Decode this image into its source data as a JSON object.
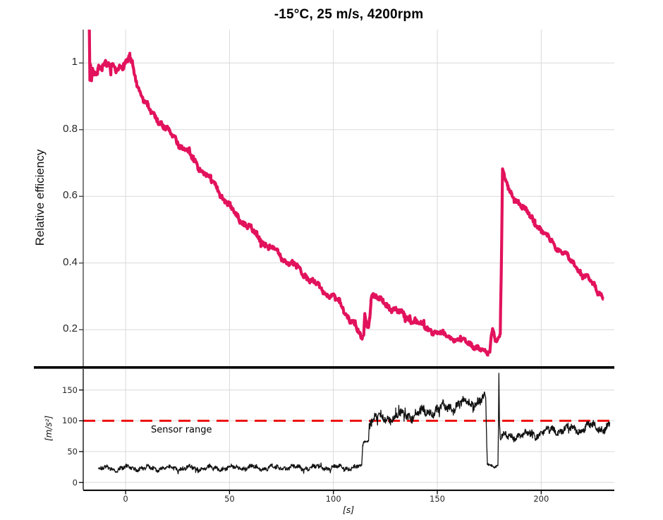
{
  "chart_data": {
    "type": "line",
    "title": "-15°C, 25 m/s, 4200rpm",
    "legend": "none",
    "grid": "on",
    "panels": [
      {
        "name": "relative-efficiency-panel",
        "ylabel": "Relative efficiency",
        "xlim": [
          -20.4,
          235.2
        ],
        "ylim": [
          0.0885,
          1.1
        ],
        "xgrid": [
          0,
          50,
          100,
          150,
          200
        ],
        "yticks": [
          {
            "value": 0.2,
            "label": "0.2"
          },
          {
            "value": 0.4,
            "label": "0.4"
          },
          {
            "value": 0.6,
            "label": "0.6"
          },
          {
            "value": 0.8,
            "label": "0.8"
          },
          {
            "value": 1,
            "label": "1"
          }
        ],
        "series": {
          "name": "relative-efficiency",
          "color": "#e2125c",
          "width": 4.2,
          "keypoints": [
            [
              -17.5,
              1.13
            ],
            [
              -17.2,
              0.95
            ],
            [
              -16.9,
              1.0
            ],
            [
              -16.4,
              0.952
            ],
            [
              -15.9,
              0.99
            ],
            [
              -15.2,
              0.98
            ],
            [
              -13,
              0.985
            ],
            [
              -10,
              0.985
            ],
            [
              -7,
              0.99
            ],
            [
              -4,
              0.985
            ],
            [
              -1,
              0.99
            ],
            [
              1,
              0.995
            ],
            [
              2,
              1.02
            ],
            [
              2.6,
              1.005
            ],
            [
              3.2,
              1.0
            ],
            [
              4,
              0.975
            ],
            [
              5,
              0.952
            ],
            [
              6,
              0.93
            ],
            [
              7,
              0.912
            ],
            [
              8,
              0.895
            ],
            [
              9,
              0.882
            ],
            [
              10.5,
              0.868
            ],
            [
              12,
              0.855
            ],
            [
              13.5,
              0.847
            ],
            [
              15,
              0.838
            ],
            [
              16.5,
              0.824
            ],
            [
              18,
              0.812
            ],
            [
              19.5,
              0.8
            ],
            [
              21,
              0.792
            ],
            [
              23,
              0.78
            ],
            [
              25,
              0.765
            ],
            [
              27,
              0.75
            ],
            [
              29,
              0.737
            ],
            [
              31,
              0.722
            ],
            [
              33,
              0.708
            ],
            [
              35,
              0.692
            ],
            [
              37,
              0.678
            ],
            [
              39,
              0.662
            ],
            [
              41,
              0.65
            ],
            [
              43,
              0.632
            ],
            [
              45,
              0.615
            ],
            [
              47,
              0.595
            ],
            [
              49,
              0.578
            ],
            [
              51,
              0.56
            ],
            [
              53,
              0.545
            ],
            [
              55,
              0.532
            ],
            [
              57,
              0.52
            ],
            [
              59,
              0.51
            ],
            [
              61,
              0.495
            ],
            [
              63,
              0.483
            ],
            [
              65,
              0.472
            ],
            [
              67,
              0.458
            ],
            [
              69,
              0.448
            ],
            [
              71,
              0.44
            ],
            [
              73,
              0.43
            ],
            [
              75,
              0.42
            ],
            [
              77,
              0.41
            ],
            [
              79,
              0.4
            ],
            [
              81,
              0.392
            ],
            [
              83,
              0.383
            ],
            [
              85,
              0.372
            ],
            [
              87,
              0.36
            ],
            [
              89,
              0.35
            ],
            [
              91,
              0.338
            ],
            [
              93,
              0.328
            ],
            [
              95,
              0.318
            ],
            [
              97,
              0.308
            ],
            [
              99,
              0.3
            ],
            [
              101,
              0.29
            ],
            [
              103,
              0.278
            ],
            [
              105,
              0.262
            ],
            [
              107,
              0.243
            ],
            [
              109,
              0.225
            ],
            [
              110.5,
              0.21
            ],
            [
              112,
              0.19
            ],
            [
              113,
              0.175
            ],
            [
              113.8,
              0.168
            ],
            [
              114.6,
              0.19
            ],
            [
              115.1,
              0.25
            ],
            [
              115.6,
              0.235
            ],
            [
              116.2,
              0.21
            ],
            [
              116.9,
              0.215
            ],
            [
              117.5,
              0.24
            ],
            [
              118.1,
              0.295
            ],
            [
              118.7,
              0.31
            ],
            [
              119.4,
              0.3
            ],
            [
              120.5,
              0.295
            ],
            [
              122,
              0.29
            ],
            [
              124,
              0.283
            ],
            [
              126,
              0.273
            ],
            [
              128,
              0.266
            ],
            [
              130,
              0.258
            ],
            [
              132,
              0.25
            ],
            [
              134,
              0.243
            ],
            [
              136,
              0.235
            ],
            [
              138,
              0.23
            ],
            [
              140,
              0.222
            ],
            [
              142,
              0.216
            ],
            [
              144,
              0.208
            ],
            [
              146,
              0.202
            ],
            [
              148,
              0.197
            ],
            [
              150,
              0.192
            ],
            [
              152,
              0.187
            ],
            [
              154,
              0.182
            ],
            [
              156,
              0.178
            ],
            [
              158,
              0.174
            ],
            [
              160,
              0.171
            ],
            [
              162,
              0.166
            ],
            [
              164,
              0.162
            ],
            [
              166,
              0.157
            ],
            [
              168,
              0.152
            ],
            [
              170,
              0.145
            ],
            [
              171.5,
              0.139
            ],
            [
              173,
              0.132
            ],
            [
              174.3,
              0.127
            ],
            [
              175.3,
              0.133
            ],
            [
              176,
              0.185
            ],
            [
              176.6,
              0.205
            ],
            [
              177.2,
              0.195
            ],
            [
              177.9,
              0.172
            ],
            [
              178.8,
              0.167
            ],
            [
              179.6,
              0.175
            ],
            [
              180.3,
              0.19
            ],
            [
              180.9,
              0.42
            ],
            [
              181.4,
              0.68
            ],
            [
              182,
              0.665
            ],
            [
              182.8,
              0.645
            ],
            [
              184,
              0.625
            ],
            [
              185.5,
              0.608
            ],
            [
              187,
              0.598
            ],
            [
              189,
              0.585
            ],
            [
              191,
              0.568
            ],
            [
              193,
              0.552
            ],
            [
              195,
              0.538
            ],
            [
              197,
              0.522
            ],
            [
              199,
              0.508
            ],
            [
              201,
              0.494
            ],
            [
              203,
              0.478
            ],
            [
              205,
              0.463
            ],
            [
              207,
              0.452
            ],
            [
              209,
              0.44
            ],
            [
              211,
              0.428
            ],
            [
              213,
              0.415
            ],
            [
              215,
              0.4
            ],
            [
              217,
              0.388
            ],
            [
              219,
              0.373
            ],
            [
              221,
              0.36
            ],
            [
              223,
              0.348
            ],
            [
              225,
              0.335
            ],
            [
              227,
              0.32
            ],
            [
              228.5,
              0.308
            ],
            [
              230,
              0.295
            ]
          ],
          "noise": [
            [
              -17.5,
              0.003
            ],
            [
              -15.5,
              0.01
            ],
            [
              2,
              0.01
            ],
            [
              4,
              0.007
            ],
            [
              113,
              0.007
            ],
            [
              115,
              0.004
            ],
            [
              120,
              0.007
            ],
            [
              174,
              0.005
            ],
            [
              176,
              0.003
            ],
            [
              181,
              0.003
            ],
            [
              183,
              0.006
            ],
            [
              230,
              0.007
            ]
          ]
        }
      },
      {
        "name": "vibration-panel",
        "ylabel": "[m/s²]",
        "xlabel": "[s]",
        "xlim": [
          -20.4,
          235.2
        ],
        "ylim": [
          -11.8,
          184.1
        ],
        "xgrid": [
          0,
          50,
          100,
          150,
          200
        ],
        "yticks": [
          {
            "value": 0,
            "label": "0"
          },
          {
            "value": 50,
            "label": "50"
          },
          {
            "value": 100,
            "label": "100"
          },
          {
            "value": 150,
            "label": "150"
          }
        ],
        "xticks": [
          {
            "value": 0,
            "label": "0"
          },
          {
            "value": 50,
            "label": "50"
          },
          {
            "value": 100,
            "label": "100"
          },
          {
            "value": 150,
            "label": "150"
          },
          {
            "value": 200,
            "label": "200"
          }
        ],
        "threshold": {
          "value": 100,
          "color": "#ee1111",
          "style": "dashed"
        },
        "annotation": {
          "text": "Sensor range"
        },
        "series": {
          "name": "acceleration",
          "color": "#111111",
          "width": 1.3,
          "keypoints": [
            [
              -13,
              22
            ],
            [
              0,
              23
            ],
            [
              20,
              23
            ],
            [
              40,
              23
            ],
            [
              60,
              24
            ],
            [
              80,
              24
            ],
            [
              100,
              24
            ],
            [
              110,
              24
            ],
            [
              113.6,
              25
            ],
            [
              114.1,
              60
            ],
            [
              114.5,
              66
            ],
            [
              115,
              68
            ],
            [
              116,
              66
            ],
            [
              116.9,
              68
            ],
            [
              117.2,
              95
            ],
            [
              117.8,
              103
            ],
            [
              119,
              102
            ],
            [
              121,
              104
            ],
            [
              124,
              104
            ],
            [
              127,
              106
            ],
            [
              130,
              106
            ],
            [
              134,
              108
            ],
            [
              138,
              110
            ],
            [
              142,
              113
            ],
            [
              146,
              116
            ],
            [
              150,
              118
            ],
            [
              154,
              121
            ],
            [
              158,
              124
            ],
            [
              162,
              127
            ],
            [
              166,
              130
            ],
            [
              170,
              132
            ],
            [
              173.3,
              134
            ],
            [
              173.8,
              60
            ],
            [
              174.1,
              30
            ],
            [
              175,
              28
            ],
            [
              176,
              27
            ],
            [
              177,
              28
            ],
            [
              178,
              27
            ],
            [
              179.2,
              28
            ],
            [
              179.45,
              100
            ],
            [
              179.65,
              177
            ],
            [
              179.9,
              100
            ],
            [
              180.3,
              72
            ],
            [
              181,
              74
            ],
            [
              183,
              73
            ],
            [
              186,
              75
            ],
            [
              189,
              76
            ],
            [
              192,
              77
            ],
            [
              195,
              78
            ],
            [
              198,
              79
            ],
            [
              201,
              81
            ],
            [
              204,
              83
            ],
            [
              207,
              85
            ],
            [
              210,
              86
            ],
            [
              213,
              87
            ],
            [
              216,
              88
            ],
            [
              219,
              87
            ],
            [
              222,
              89
            ],
            [
              225,
              91
            ],
            [
              227,
              92
            ],
            [
              229,
              89
            ],
            [
              231,
              88
            ],
            [
              233,
              91
            ]
          ],
          "noise": [
            [
              -13,
              3
            ],
            [
              113,
              3
            ],
            [
              114,
              1.5
            ],
            [
              116.9,
              2
            ],
            [
              117.5,
              6
            ],
            [
              173,
              6.5
            ],
            [
              173.9,
              1.5
            ],
            [
              179,
              2
            ],
            [
              179.8,
              1
            ],
            [
              180.5,
              5
            ],
            [
              233,
              5.5
            ]
          ]
        }
      }
    ]
  }
}
